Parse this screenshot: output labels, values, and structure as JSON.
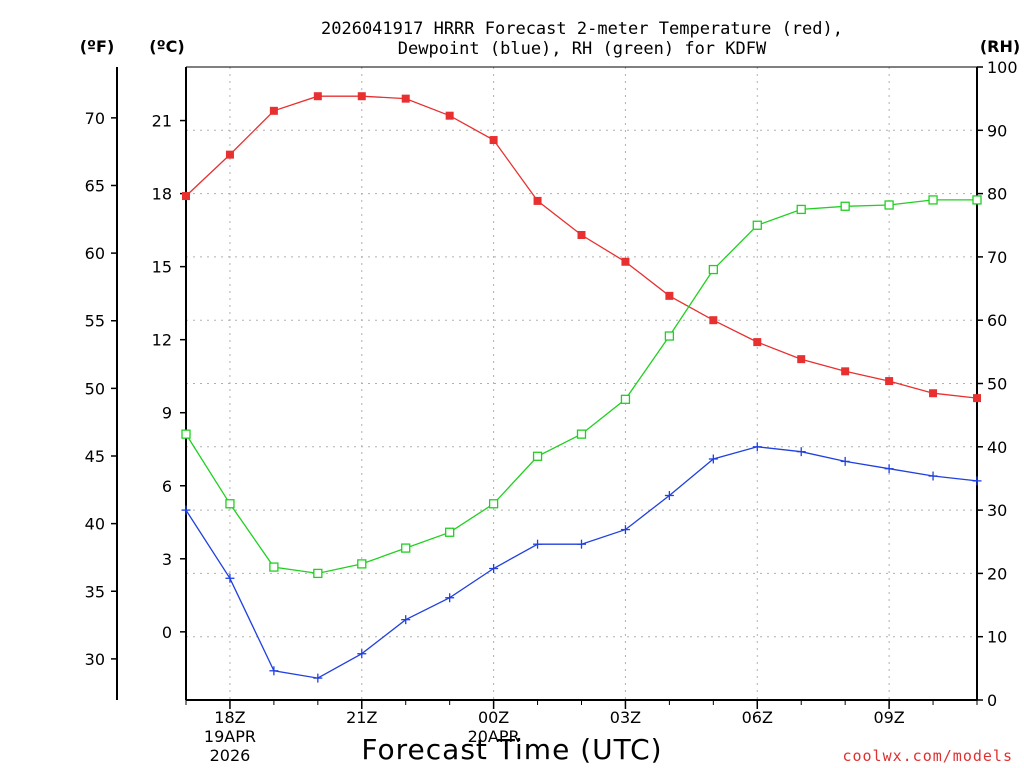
{
  "chart_data": {
    "type": "line",
    "title_line1": "2026041917 HRRR Forecast 2-meter Temperature (red),",
    "title_line2": "Dewpoint (blue), RH (green) for KDFW",
    "xlabel": "Forecast Time (UTC)",
    "credit": "coolwx.com/models",
    "units": {
      "f": "(ºF)",
      "c": "(ºC)",
      "rh": "(RH)"
    },
    "x_hours": [
      17,
      18,
      19,
      20,
      21,
      22,
      23,
      24,
      25,
      26,
      27,
      28,
      29,
      30,
      31,
      32,
      33,
      34,
      35
    ],
    "xlim": [
      17,
      35
    ],
    "x_ticks": [
      {
        "hour": 18,
        "label": "18Z",
        "sub1": "19APR",
        "sub2": "2026"
      },
      {
        "hour": 21,
        "label": "21Z",
        "sub1": "",
        "sub2": ""
      },
      {
        "hour": 24,
        "label": "00Z",
        "sub1": "20APR",
        "sub2": ""
      },
      {
        "hour": 27,
        "label": "03Z",
        "sub1": "",
        "sub2": ""
      },
      {
        "hour": 30,
        "label": "06Z",
        "sub1": "",
        "sub2": ""
      },
      {
        "hour": 33,
        "label": "09Z",
        "sub1": "",
        "sub2": ""
      }
    ],
    "x_grid_hours": [
      18,
      21,
      24,
      27,
      30,
      33
    ],
    "celsius_axis": {
      "ylim": [
        -2.8,
        23.2
      ],
      "ticks": [
        0,
        3,
        6,
        9,
        12,
        15,
        18,
        21
      ]
    },
    "fahrenheit_axis": {
      "ticks": [
        30,
        35,
        40,
        45,
        50,
        55,
        60,
        65,
        70
      ]
    },
    "rh_axis": {
      "ylim": [
        0,
        100
      ],
      "ticks": [
        0,
        10,
        20,
        30,
        40,
        50,
        60,
        70,
        80,
        90,
        100
      ]
    },
    "series": [
      {
        "name": "Temperature",
        "color": "#e83030",
        "axis": "c",
        "marker": "filled-square",
        "values": [
          17.9,
          19.6,
          21.4,
          22.0,
          22.0,
          21.9,
          21.2,
          20.2,
          17.7,
          16.3,
          15.2,
          13.8,
          12.8,
          11.9,
          11.2,
          10.7,
          10.3,
          9.8,
          9.6
        ]
      },
      {
        "name": "Dewpoint",
        "color": "#2040e0",
        "axis": "c",
        "marker": "plus",
        "values": [
          5.0,
          2.2,
          -1.6,
          -1.9,
          -0.9,
          0.5,
          1.4,
          2.6,
          3.6,
          3.6,
          4.2,
          5.6,
          7.1,
          7.6,
          7.4,
          7.0,
          6.7,
          6.4,
          6.2
        ]
      },
      {
        "name": "RH",
        "color": "#20d020",
        "axis": "rh",
        "marker": "open-square",
        "values": [
          42.0,
          31.0,
          21.0,
          20.0,
          21.5,
          24.0,
          26.5,
          31.0,
          38.5,
          42.0,
          47.5,
          57.5,
          68.0,
          75.0,
          77.5,
          78.0,
          78.2,
          79.0,
          79.0
        ]
      }
    ]
  }
}
